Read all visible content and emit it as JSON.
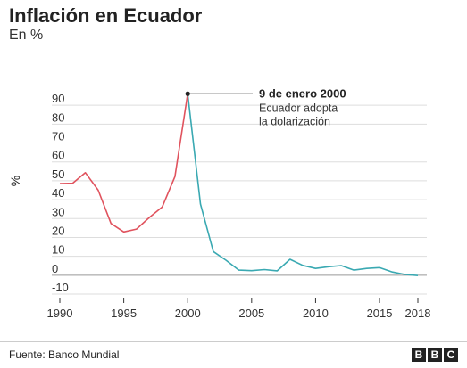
{
  "header": {
    "title": "Inflación en Ecuador",
    "subtitle": "En %"
  },
  "footer": {
    "source": "Fuente: Banco Mundial",
    "logo": [
      "B",
      "B",
      "C"
    ]
  },
  "colors": {
    "pre_dollarization": "#e0535e",
    "post_dollarization": "#3aa9b2",
    "annotation": "#222222",
    "grid": "#dddddd"
  },
  "chart_data": {
    "type": "line",
    "title": "Inflación en Ecuador",
    "subtitle": "En %",
    "xlabel": "",
    "ylabel": "%",
    "xlim": [
      1990,
      2018
    ],
    "ylim": [
      -10,
      100
    ],
    "x_ticks": [
      1990,
      1995,
      2000,
      2005,
      2010,
      2015,
      2018
    ],
    "y_ticks": [
      -10,
      0,
      10,
      20,
      30,
      40,
      50,
      60,
      70,
      80,
      90
    ],
    "grid": "horizontal",
    "series": [
      {
        "color": "#e0535e",
        "x": [
          1990,
          1991,
          1992,
          1993,
          1994,
          1995,
          1996,
          1997,
          1998,
          1999,
          2000
        ],
        "y": [
          48.5,
          48.7,
          54.3,
          45.0,
          27.4,
          22.9,
          24.4,
          30.6,
          36.1,
          52.2,
          96.1
        ]
      },
      {
        "color": "#3aa9b2",
        "x": [
          2000,
          2001,
          2002,
          2003,
          2004,
          2005,
          2006,
          2007,
          2008,
          2009,
          2010,
          2011,
          2012,
          2013,
          2014,
          2015,
          2016,
          2017,
          2018
        ],
        "y": [
          96.1,
          37.7,
          12.5,
          7.9,
          2.7,
          2.4,
          3.0,
          2.3,
          8.4,
          5.2,
          3.6,
          4.5,
          5.1,
          2.7,
          3.6,
          4.0,
          1.7,
          0.4,
          -0.2
        ]
      }
    ],
    "annotation": {
      "x": 2000,
      "y": 96.1,
      "title": "9 de enero 2000",
      "lines": [
        "Ecuador adopta",
        "la dolarización"
      ]
    }
  }
}
